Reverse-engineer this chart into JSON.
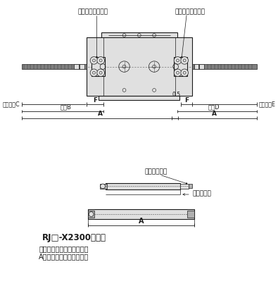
{
  "bg_color": "#ffffff",
  "line_color": "#1a1a1a",
  "gray_fill": "#c8c8c8",
  "light_gray": "#e0e0e0",
  "med_gray": "#b0b0b0",
  "dark_gray": "#808080",
  "label_koretai_L": "後退端アジャスタ",
  "label_koretai_R": "前進端アジャスタ",
  "label_chosei_C": "調整範囲C",
  "label_chosei_E": "調整範囲E",
  "label_F": "F",
  "label_max_B": "最大B",
  "label_max_D": "最大D",
  "label_A": "A",
  "label_05": "0.5",
  "label_cap": "キャップ金具",
  "label_stroke": "ストローク",
  "title_text": "RJ□-X2300の場合",
  "subtitle1": "キャップ金具を取付けて、",
  "subtitle2": "A寸法を長くしています。"
}
